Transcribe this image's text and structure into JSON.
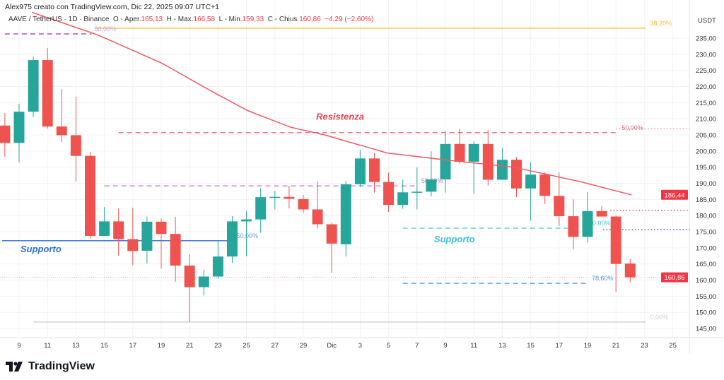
{
  "header": {
    "credit": "Alex975 creato con TradingView.com, Dic 22, 2025 09:07 UTC+1",
    "symbol": "AAVE / TetherUS · 1D · Binance",
    "open_label": "O - Aper.",
    "open": "165,13",
    "high_label": "H - Max.",
    "high": "166,58",
    "low_label": "L - Min.",
    "low": "159,33",
    "close_label": "C - Chius.",
    "close": "160,86",
    "change": "−4,29 (−2,60%)"
  },
  "colors": {
    "up": "#26a69a",
    "down": "#ef5350",
    "ma": "#f05a5f",
    "bg": "#ffffff"
  },
  "logo": {
    "text": "TradingView",
    "icon": "tradingview-logo-icon"
  },
  "chart_data": {
    "type": "candlestick",
    "currency": "USDT",
    "ylim": [
      142,
      241
    ],
    "yticks": [
      "235,00",
      "230,00",
      "225,00",
      "220,00",
      "215,00",
      "210,00",
      "205,00",
      "200,00",
      "195,00",
      "190,00",
      "185,00",
      "180,00",
      "175,00",
      "170,00",
      "165,00",
      "160,00",
      "155,00",
      "150,00",
      "145,00"
    ],
    "ytick_values": [
      235,
      230,
      225,
      220,
      215,
      210,
      205,
      200,
      195,
      190,
      185,
      180,
      175,
      170,
      165,
      160,
      155,
      150,
      145
    ],
    "xticks": [
      {
        "day": 0,
        "label": "9"
      },
      {
        "day": 2,
        "label": "11"
      },
      {
        "day": 4,
        "label": "13"
      },
      {
        "day": 6,
        "label": "15"
      },
      {
        "day": 8,
        "label": "17"
      },
      {
        "day": 10,
        "label": "19"
      },
      {
        "day": 12,
        "label": "21"
      },
      {
        "day": 14,
        "label": "23"
      },
      {
        "day": 16,
        "label": "25"
      },
      {
        "day": 18,
        "label": "27"
      },
      {
        "day": 20,
        "label": "29"
      },
      {
        "day": 22,
        "label": "Dic"
      },
      {
        "day": 24,
        "label": "3"
      },
      {
        "day": 26,
        "label": "5"
      },
      {
        "day": 28,
        "label": "7"
      },
      {
        "day": 30,
        "label": "9"
      },
      {
        "day": 32,
        "label": "11"
      },
      {
        "day": 34,
        "label": "13"
      },
      {
        "day": 36,
        "label": "15"
      },
      {
        "day": 38,
        "label": "17"
      },
      {
        "day": 40,
        "label": "19"
      },
      {
        "day": 42,
        "label": "21"
      },
      {
        "day": 44,
        "label": "23"
      },
      {
        "day": 46,
        "label": "25"
      }
    ],
    "candles_start_day": -1,
    "candles_ohlc": [
      [
        207.9,
        211.8,
        198.2,
        202.5
      ],
      [
        202.5,
        214.7,
        196.5,
        212.2
      ],
      [
        212.2,
        229.3,
        210.5,
        228.2
      ],
      [
        228.2,
        231.9,
        207.0,
        207.6
      ],
      [
        207.6,
        219.2,
        202.7,
        204.9
      ],
      [
        204.9,
        216.9,
        190.6,
        198.5
      ],
      [
        198.5,
        199.7,
        172.8,
        173.7
      ],
      [
        173.7,
        182.7,
        173.7,
        178.2
      ],
      [
        178.2,
        182.2,
        167.6,
        172.7
      ],
      [
        172.7,
        182.4,
        164.7,
        169.0
      ],
      [
        169.1,
        179.7,
        165.1,
        178.1
      ],
      [
        178.1,
        179.1,
        163.6,
        174.3
      ],
      [
        174.3,
        179.6,
        159.5,
        164.5
      ],
      [
        164.5,
        168.0,
        147.0,
        157.8
      ],
      [
        157.8,
        163.2,
        155.2,
        161.1
      ],
      [
        161.1,
        172.0,
        160.3,
        167.3
      ],
      [
        167.3,
        179.8,
        165.4,
        178.2
      ],
      [
        178.2,
        181.4,
        167.4,
        178.8
      ],
      [
        178.8,
        188.6,
        174.7,
        185.7
      ],
      [
        185.6,
        187.7,
        181.9,
        185.8
      ],
      [
        185.8,
        189.2,
        182.2,
        185.2
      ],
      [
        185.1,
        186.4,
        180.8,
        181.9
      ],
      [
        181.9,
        190.6,
        176.0,
        177.3
      ],
      [
        177.3,
        177.8,
        162.2,
        171.3
      ],
      [
        171.1,
        190.8,
        167.3,
        189.7
      ],
      [
        189.7,
        200.3,
        188.8,
        197.7
      ],
      [
        197.7,
        199.4,
        187.1,
        190.4
      ],
      [
        190.4,
        193.3,
        181.1,
        183.3
      ],
      [
        183.3,
        191.2,
        182.1,
        187.2
      ],
      [
        187.3,
        194.9,
        181.9,
        187.4
      ],
      [
        187.4,
        199.9,
        185.9,
        191.2
      ],
      [
        191.2,
        206.1,
        187.1,
        202.2
      ],
      [
        202.2,
        206.9,
        196.1,
        196.7
      ],
      [
        196.7,
        203.0,
        186.8,
        202.2
      ],
      [
        202.2,
        206.5,
        189.3,
        191.1
      ],
      [
        191.1,
        201.0,
        191.1,
        197.3
      ],
      [
        197.3,
        198.1,
        185.7,
        188.4
      ],
      [
        188.4,
        196.5,
        178.4,
        192.7
      ],
      [
        192.7,
        193.5,
        183.6,
        186.1
      ],
      [
        186.1,
        193.3,
        176.8,
        179.8
      ],
      [
        179.8,
        185.0,
        169.5,
        173.4
      ],
      [
        173.4,
        187.3,
        171.6,
        181.4
      ],
      [
        181.4,
        183.0,
        179.7,
        179.7
      ],
      [
        179.7,
        180.0,
        156.4,
        165.0
      ],
      [
        165.13,
        166.58,
        159.33,
        160.86
      ]
    ],
    "moving_average": [
      [
        0.9,
        243.0
      ],
      [
        5.6,
        235.9
      ],
      [
        10.1,
        227.1
      ],
      [
        13.6,
        218.4
      ],
      [
        16.1,
        212.5
      ],
      [
        19.1,
        207.4
      ],
      [
        21.5,
        205.0
      ],
      [
        25.9,
        199.4
      ],
      [
        30.5,
        197.0
      ],
      [
        34.8,
        195.0
      ],
      [
        39.5,
        190.5
      ],
      [
        43.1,
        186.4
      ]
    ],
    "last_ma_label": "186,44",
    "last_price_label": "160,86",
    "last_price": 160.86,
    "last_ma": 186.44,
    "drawings": [
      {
        "kind": "solid",
        "color": "#f7b731",
        "price": 238.1,
        "from": 5.4,
        "to": 44.1,
        "label": "38,20%",
        "label_day": 44.4
      },
      {
        "kind": "dashed",
        "color": "#9c3fbf",
        "price": 236.3,
        "from": -1,
        "to": 5.1,
        "label": "50,00%",
        "label_day": 5.3,
        "label_color": "#c9a3d6"
      },
      {
        "kind": "dashed",
        "color": "#e66b7d",
        "price": 205.7,
        "from": 7,
        "to": 42.2,
        "label": "50,00%",
        "label_day": 42.4
      },
      {
        "kind": "dotted",
        "color": "#e89aa4",
        "price": 206.9,
        "from": 42.0,
        "to": 47.2,
        "label": "",
        "label_day": 0
      },
      {
        "kind": "dashed",
        "color": "#c17ed4",
        "price": 189.2,
        "from": 6,
        "to": 28,
        "label": "50,00%",
        "label_day": 28.3
      },
      {
        "kind": "solid",
        "color": "#2f6fd6",
        "price": 172.2,
        "from": -1.2,
        "to": 14.7,
        "label": "50,00%",
        "label_day": 15.3,
        "label_color": "#6a9be6"
      },
      {
        "kind": "dashed",
        "color": "#4fc3d9",
        "price": 176.1,
        "from": 27,
        "to": 38.7,
        "label": "50,00%",
        "label_day": 40.1
      },
      {
        "kind": "dashed",
        "color": "#3e9ce0",
        "price": 159.0,
        "from": 27,
        "to": 40,
        "label": "78,60%",
        "label_day": 40.3
      },
      {
        "kind": "solid",
        "color": "#c8c8c8",
        "price": 147.0,
        "from": 1,
        "to": 44.1,
        "label": "0,00%",
        "label_day": 44.4,
        "label_color": "#cfcfcf"
      },
      {
        "kind": "dotted",
        "color": "#e2505d",
        "price": 181.6,
        "from": 41.6,
        "to": 47.2,
        "label": "",
        "label_day": 0
      },
      {
        "kind": "dotted",
        "color": "#3b5bd6",
        "price": 175.6,
        "from": 41.1,
        "to": 47.2,
        "label": "",
        "label_day": 0
      }
    ],
    "annotations": [
      {
        "text": "Resistenza",
        "day": 20.9,
        "price": 209.7,
        "color": "#e8445a"
      },
      {
        "text": "Supporto",
        "day": 0.1,
        "price": 168.7,
        "color": "#2f6fd6"
      },
      {
        "text": "Supporto",
        "day": 29.2,
        "price": 171.7,
        "color": "#3dbfd9"
      }
    ]
  }
}
